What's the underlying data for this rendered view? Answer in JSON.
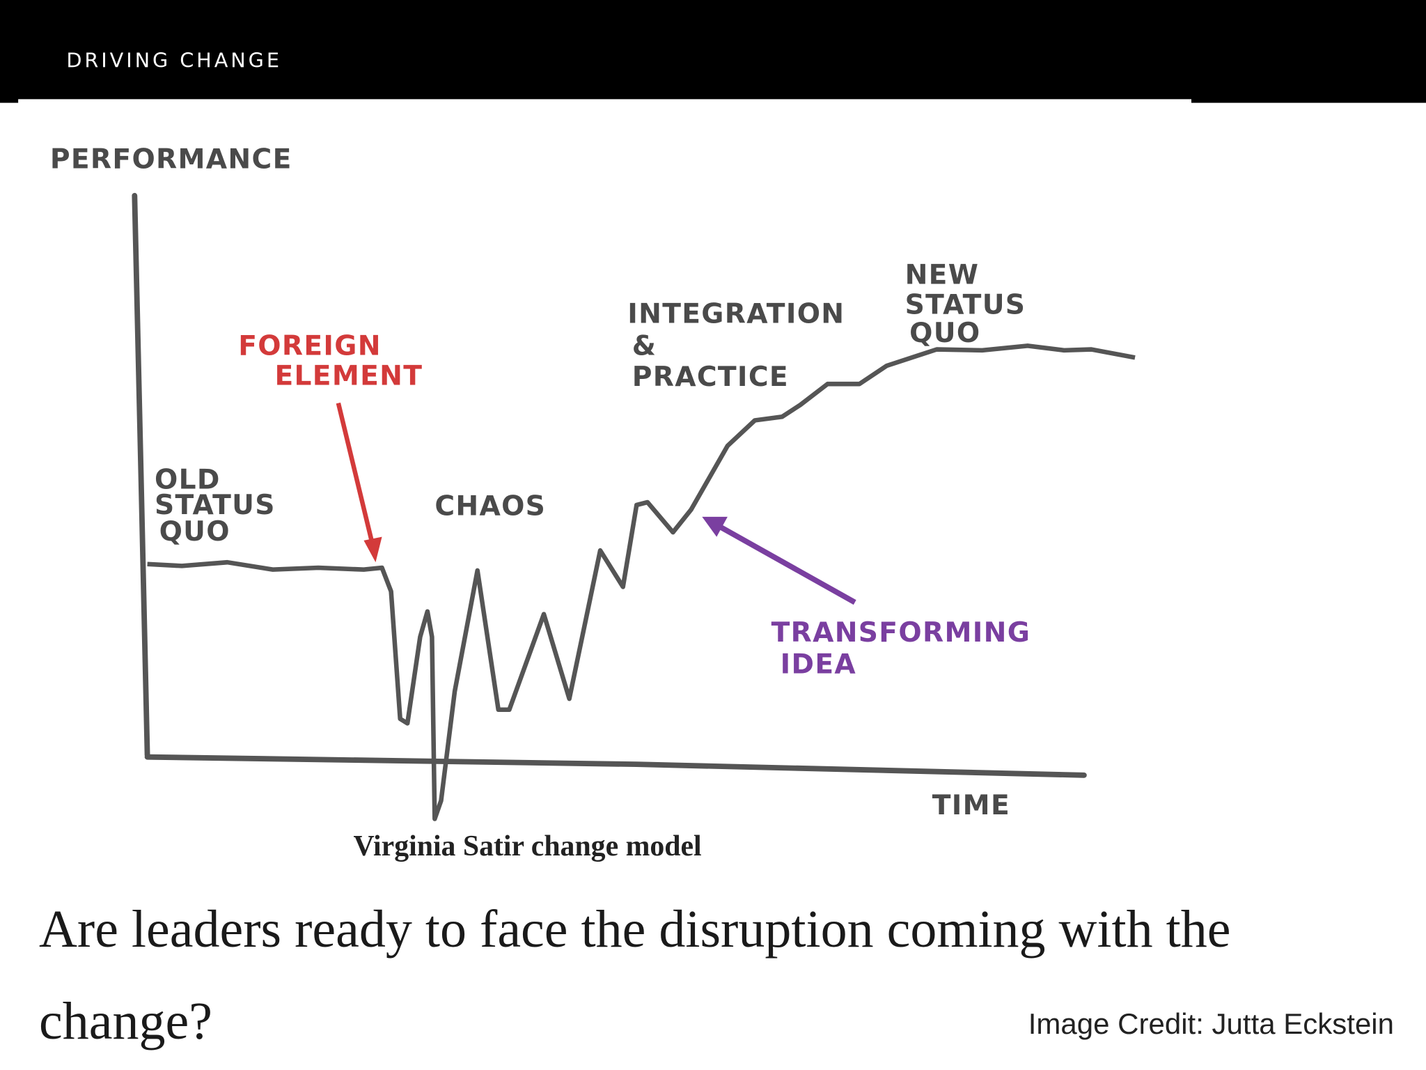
{
  "header": {
    "title": "DRIVING CHANGE"
  },
  "diagram": {
    "y_axis_label": "PERFORMANCE",
    "x_axis_label": "TIME",
    "annotations": [
      {
        "lines": [
          "OLD",
          "STATUS",
          "QUO"
        ]
      },
      {
        "lines": [
          "FOREIGN",
          "ELEMENT"
        ]
      },
      {
        "lines": [
          "CHAOS"
        ]
      },
      {
        "lines": [
          "INTEGRATION",
          "&",
          "PRACTICE"
        ]
      },
      {
        "lines": [
          "NEW",
          "STATUS",
          "QUO"
        ]
      },
      {
        "lines": [
          "TRANSFORMING",
          "IDEA"
        ]
      }
    ],
    "caption": "Virginia Satir change model"
  },
  "headline": "Are leaders ready to face the disruption coming with the change?",
  "credit": "Image Credit: Jutta Eckstein"
}
